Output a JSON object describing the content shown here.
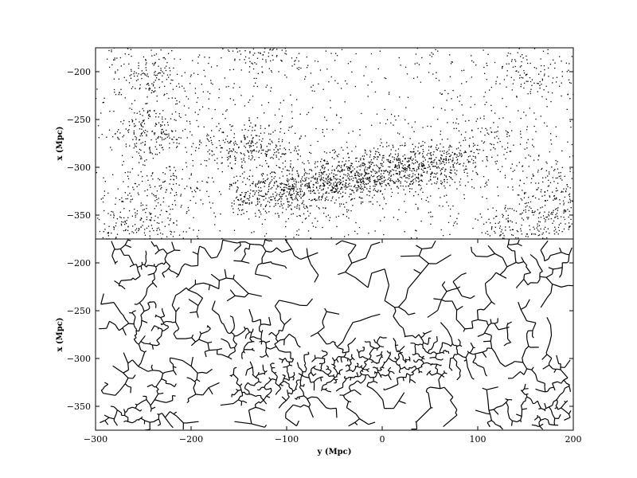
{
  "chart_data": [
    {
      "type": "scatter",
      "panel": "top",
      "description_kind": "galaxy positions (point distribution)",
      "xlabel": "",
      "ylabel": "x (Mpc)",
      "xlim": [
        -300,
        200
      ],
      "ylim": [
        -375,
        -175
      ],
      "x_ticks": [],
      "y_ticks": [
        -200,
        -250,
        -300,
        -350
      ],
      "y_tick_labels": [
        "−200",
        "−250",
        "−300",
        "−350"
      ],
      "point_color": "#000000",
      "grid": false,
      "density_clusters": [
        {
          "y": -242,
          "x": -262,
          "weight": 1.0
        },
        {
          "y": -240,
          "x": -205,
          "weight": 0.8
        },
        {
          "y": -125,
          "x": -180,
          "weight": 0.7
        },
        {
          "y": -128,
          "x": -280,
          "weight": 1.0
        },
        {
          "y": -95,
          "x": -330,
          "weight": 1.0
        },
        {
          "y": -55,
          "x": -318,
          "weight": 1.0
        },
        {
          "y": -20,
          "x": -308,
          "weight": 1.0
        },
        {
          "y": 15,
          "x": -305,
          "weight": 0.9
        },
        {
          "y": 50,
          "x": -295,
          "weight": 0.8
        },
        {
          "y": -232,
          "x": -325,
          "weight": 0.7
        },
        {
          "y": -262,
          "x": -360,
          "weight": 0.9
        },
        {
          "y": 180,
          "x": -318,
          "weight": 0.7
        },
        {
          "y": 185,
          "x": -355,
          "weight": 0.8
        },
        {
          "y": 140,
          "x": -360,
          "weight": 0.6
        },
        {
          "y": 110,
          "x": -270,
          "weight": 0.5
        },
        {
          "y": 155,
          "x": -205,
          "weight": 0.5
        },
        {
          "y": -170,
          "x": -280,
          "weight": 0.6
        }
      ]
    },
    {
      "type": "network",
      "panel": "bottom",
      "description_kind": "minimal spanning tree of the same points",
      "xlabel": "y (Mpc)",
      "ylabel": "x (Mpc)",
      "xlim": [
        -300,
        200
      ],
      "ylim": [
        -375,
        -175
      ],
      "x_ticks": [
        -300,
        -200,
        -100,
        0,
        100,
        200
      ],
      "x_tick_labels": [
        "−300",
        "−200",
        "−100",
        "0",
        "100",
        "200"
      ],
      "y_ticks": [
        -200,
        -250,
        -300,
        -350
      ],
      "y_tick_labels": [
        "−200",
        "−250",
        "−300",
        "−350"
      ],
      "edge_color": "#000000",
      "grid": false
    }
  ]
}
